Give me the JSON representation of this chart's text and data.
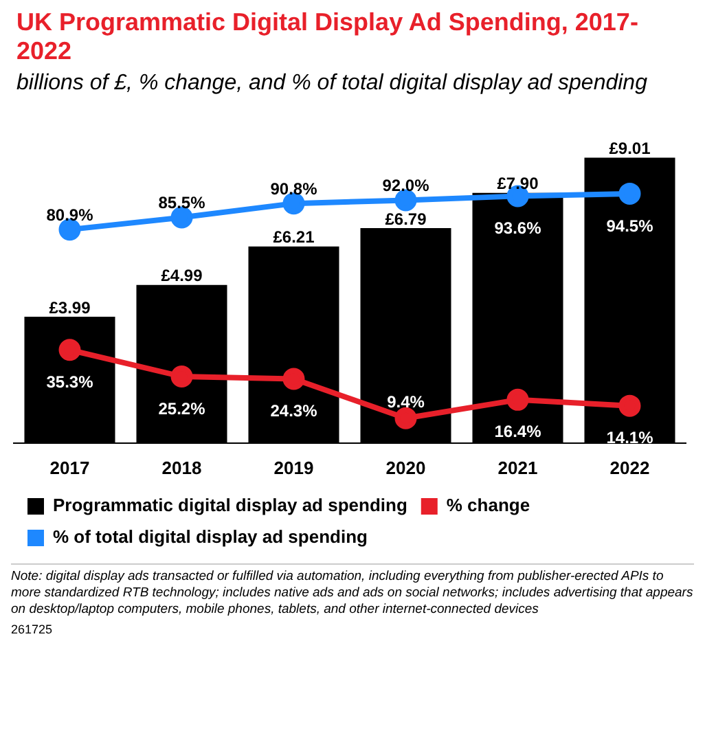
{
  "chart_data": {
    "type": "bar",
    "title": "UK Programmatic Digital Display Ad Spending, 2017-2022",
    "subtitle": "billions of £, % change, and % of total digital display ad spending",
    "categories": [
      "2017",
      "2018",
      "2019",
      "2020",
      "2021",
      "2022"
    ],
    "series": [
      {
        "name": "Programmatic digital display ad spending",
        "color": "#000000",
        "values": [
          3.99,
          4.99,
          6.21,
          6.79,
          7.9,
          9.01
        ],
        "value_labels": [
          "£3.99",
          "£4.99",
          "£6.21",
          "£6.79",
          "£7.90",
          "£9.01"
        ]
      },
      {
        "name": "% change",
        "type": "line",
        "axis": "y2",
        "color": "#e8202a",
        "values": [
          35.3,
          25.2,
          24.3,
          9.4,
          16.4,
          14.1
        ],
        "value_labels": [
          "35.3%",
          "25.2%",
          "24.3%",
          "9.4%",
          "16.4%",
          "14.1%"
        ]
      },
      {
        "name": "% of total digital display ad spending",
        "type": "line",
        "axis": "y2",
        "color": "#1e88ff",
        "values": [
          80.9,
          85.5,
          90.8,
          92.0,
          93.6,
          94.5
        ],
        "value_labels": [
          "80.9%",
          "85.5%",
          "90.8%",
          "92.0%",
          "93.6%",
          "94.5%"
        ]
      }
    ],
    "tick_labels": "x",
    "legend": "bottom",
    "marker": "circle",
    "annotations": [
      "Note: digital display ads transacted or fulfilled via automation, including everything from publisher-erected APIs to more standardized RTB technology; includes native ads and ads on social networks; includes advertising that appears on desktop/laptop computers, mobile phones, tablets, and other internet-connected devices",
      "261725"
    ]
  }
}
